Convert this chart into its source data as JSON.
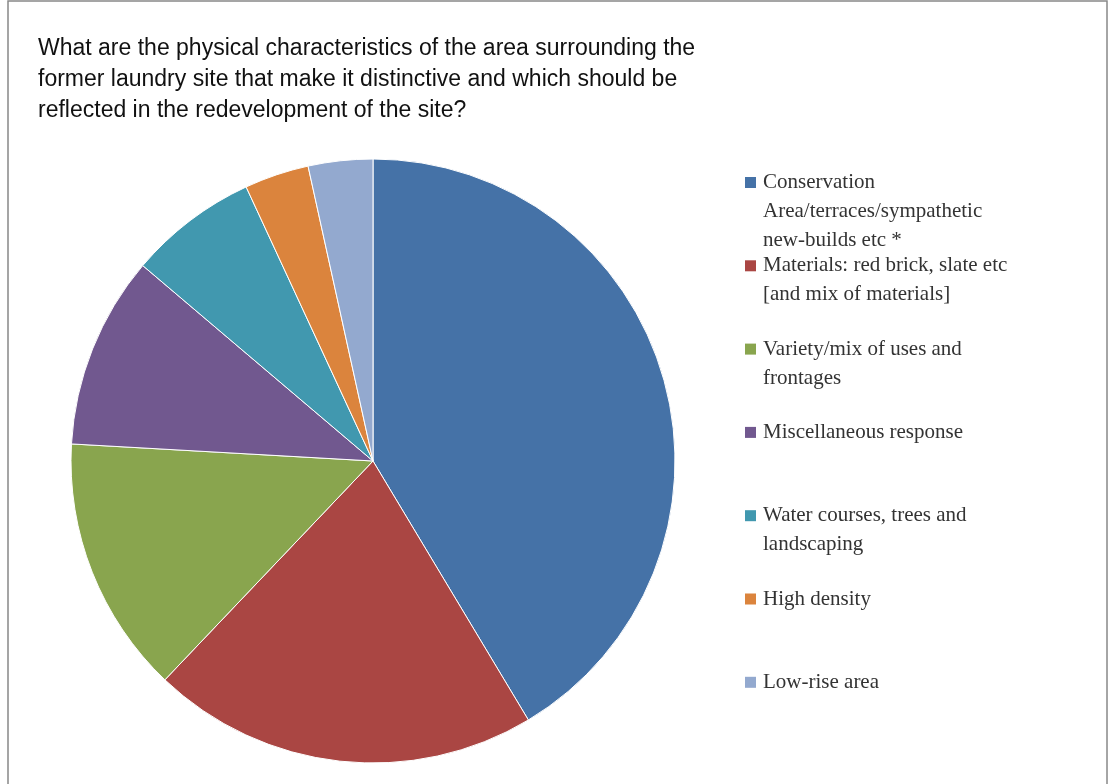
{
  "chart_data": {
    "type": "pie",
    "title": "What are the physical characteristics of the area surrounding the former laundry site that make it distinctive and which should be reflected in the redevelopment of the site?",
    "categories": [
      "Conservation Area/terraces/sympathetic new-builds etc *",
      "Materials: red brick, slate etc [and mix of materials]",
      "Variety/mix of uses and frontages",
      "Miscellaneous response",
      "Water courses, trees and landscaping",
      "High density",
      "Low-rise area"
    ],
    "values": [
      41.4,
      20.7,
      13.8,
      10.3,
      6.9,
      3.45,
      3.45
    ],
    "colors": [
      "#4572a7",
      "#aa4643",
      "#89a54e",
      "#71588f",
      "#4198af",
      "#db843d",
      "#93a9cf"
    ],
    "legend": "right"
  }
}
